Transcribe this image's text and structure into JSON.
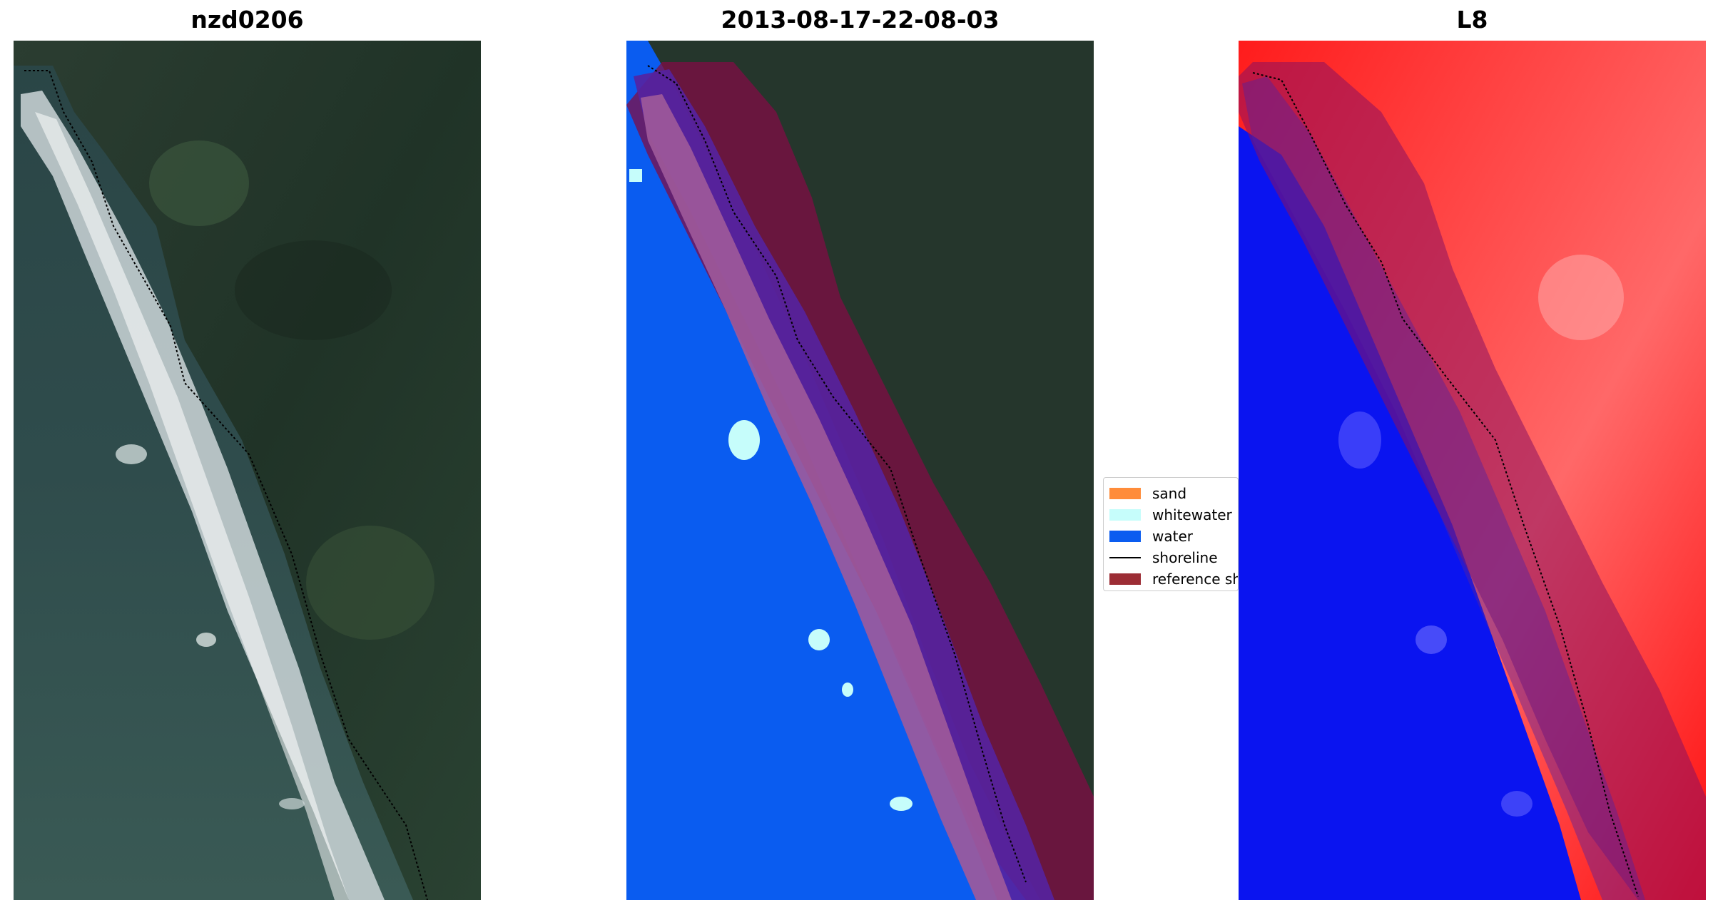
{
  "panels": [
    {
      "title": "nzd0206"
    },
    {
      "title": "2013-08-17-22-08-03"
    },
    {
      "title": "L8"
    }
  ],
  "legend": {
    "items": [
      {
        "label": "sand",
        "kind": "patch",
        "color": "#ff8c3a"
      },
      {
        "label": "whitewater",
        "kind": "patch",
        "color": "#c6fdfb"
      },
      {
        "label": "water",
        "kind": "patch",
        "color": "#0a5cf0"
      },
      {
        "label": "shoreline",
        "kind": "line",
        "color": "#000000"
      },
      {
        "label": "reference shoreline buffer",
        "kind": "patch",
        "color": "#9c2d35"
      }
    ]
  },
  "colors": {
    "land_dark": "#1f3327",
    "land_green": "#2f4a36",
    "sea": "#2c4a4c",
    "surf": "#d8dde0",
    "water_class": "#0a5cf0",
    "whitewater_class": "#c6fdfb",
    "buffer": "#800c44",
    "ndwi_high": "#ff1010",
    "ndwi_low": "#0a10f0",
    "shoreline": "#000000"
  }
}
